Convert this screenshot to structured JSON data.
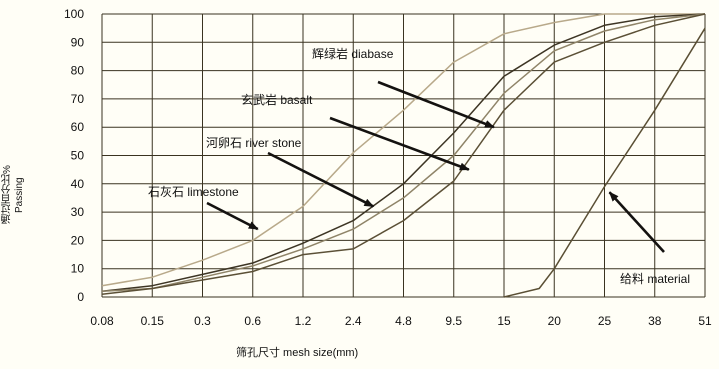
{
  "chart_data": {
    "type": "line",
    "title": "",
    "xlabel": "筛孔尺寸   mesh size(mm)",
    "ylabel_cn": "通过百分比%",
    "ylabel_en": "Passing",
    "x_categories": [
      "0.08",
      "0.15",
      "0.3",
      "0.6",
      "1.2",
      "2.4",
      "4.8",
      "9.5",
      "15",
      "20",
      "25",
      "38",
      "51"
    ],
    "y_ticks": [
      "0",
      "10",
      "20",
      "30",
      "40",
      "50",
      "60",
      "70",
      "80",
      "90",
      "100"
    ],
    "ylim": [
      0,
      100
    ],
    "grid": true,
    "colors": {
      "background": "#fffef6",
      "grid": "#3a3320",
      "diabase": "#b8a98a",
      "basalt": "#3d3524",
      "river_stone": "#8f8468",
      "limestone": "#5b5036",
      "material": "#5a4f34",
      "arrow": "#141210"
    },
    "series": [
      {
        "name": "辉绿岩 diabase",
        "x": [
          0,
          1,
          2,
          3,
          4,
          5,
          6,
          7,
          8,
          9,
          10,
          11,
          12
        ],
        "y": [
          4,
          7,
          13,
          20,
          32,
          51,
          66,
          83,
          93,
          97,
          100,
          100,
          100
        ]
      },
      {
        "name": "玄武岩 basalt",
        "x": [
          0,
          1,
          2,
          3,
          4,
          5,
          6,
          7,
          8,
          9,
          10,
          11,
          12
        ],
        "y": [
          2,
          4,
          8,
          12,
          19,
          27,
          40,
          58,
          78,
          89,
          96,
          99,
          100
        ]
      },
      {
        "name": "河卵石 river stone",
        "x": [
          0,
          1,
          2,
          3,
          4,
          5,
          6,
          7,
          8,
          9,
          10,
          11,
          12
        ],
        "y": [
          2,
          3,
          7,
          11,
          17,
          24,
          35,
          50,
          72,
          87,
          94,
          98,
          100
        ]
      },
      {
        "name": "石灰石 limestone",
        "x": [
          0,
          1,
          2,
          3,
          4,
          5,
          6,
          7,
          8,
          9,
          10,
          11,
          12
        ],
        "y": [
          1,
          3,
          6,
          9,
          15,
          17,
          27,
          41,
          66,
          83,
          90,
          96,
          100
        ]
      },
      {
        "name": "给料 material",
        "x": [
          8,
          8.7,
          9,
          10,
          11,
          12
        ],
        "y": [
          0,
          3,
          10,
          39,
          66,
          95
        ]
      }
    ],
    "annotations": [
      {
        "text": "辉绿岩 diabase",
        "series": "辉绿岩 diabase",
        "point": [
          7.8,
          60
        ]
      },
      {
        "text": "玄武岩 basalt",
        "series": "玄武岩 basalt",
        "point": [
          7.3,
          45
        ]
      },
      {
        "text": "河卵石 river stone",
        "series": "河卵石 river stone",
        "point": [
          5.4,
          32
        ]
      },
      {
        "text": "石灰石 limestone",
        "series": "石灰石 limestone",
        "point": [
          3.1,
          24
        ]
      },
      {
        "text": "给料 material",
        "series": "给料 material",
        "point": [
          10.1,
          37
        ]
      }
    ]
  }
}
